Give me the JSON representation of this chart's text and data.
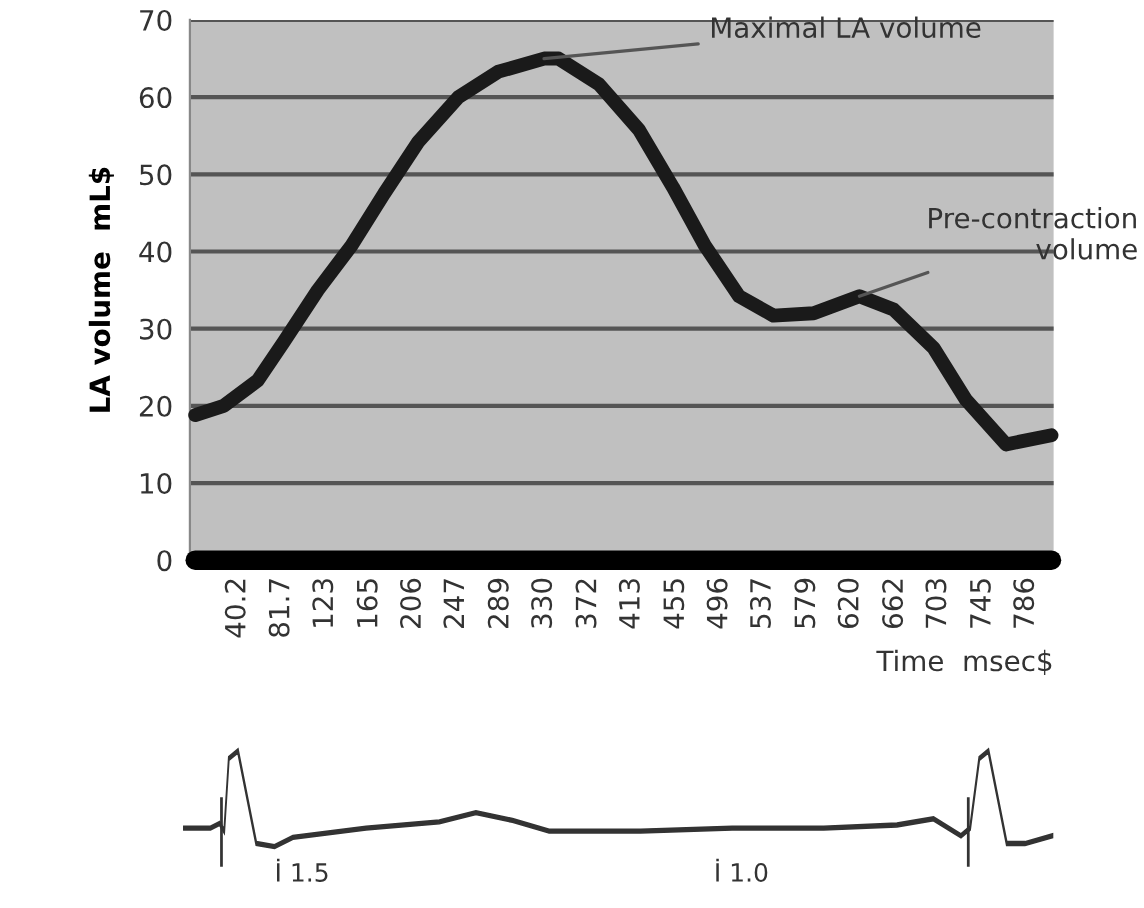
{
  "chart_data": {
    "type": "line",
    "xlabel": "Time  msec$",
    "ylabel": "LA volume  mL$",
    "x": [
      0,
      26.9,
      59.2,
      83.8,
      116,
      148,
      178.7,
      211,
      249,
      286.8,
      330,
      343.7,
      381.7,
      419.6,
      452,
      482,
      514.5,
      547,
      585,
      628.3,
      660.6,
      698.5,
      729,
      767,
      810
    ],
    "series": [
      {
        "color": "#1a1a1a",
        "values": [
          18.8,
          20,
          23.3,
          28.3,
          35,
          40.8,
          47.5,
          54.2,
          60,
          63.3,
          65,
          65,
          61.7,
          55.8,
          48.3,
          40.8,
          34.2,
          31.7,
          32,
          34.2,
          32.5,
          27.5,
          20.8,
          15,
          16.2
        ]
      },
      {
        "color": "#000000",
        "values": [
          0,
          0,
          0,
          0,
          0,
          0,
          0,
          0,
          0,
          0,
          0,
          0,
          0,
          0,
          0,
          0,
          0,
          0,
          0,
          0,
          0,
          0,
          0,
          0,
          0
        ]
      }
    ],
    "xlim": [
      -5,
      812
    ],
    "xticks": [
      40.2,
      81.7,
      123,
      165,
      206,
      247,
      289,
      330,
      372,
      413,
      455,
      496,
      537,
      579,
      620,
      662,
      703,
      745,
      786
    ],
    "ylim": [
      0,
      70
    ],
    "yticks": [
      0,
      10,
      20,
      30,
      40,
      50,
      60,
      70
    ],
    "grid": "y",
    "legend": false,
    "line_style": "solid",
    "marker": "none",
    "annotations": [
      {
        "text": "Maximal LA volume",
        "x": 330,
        "y": 65
      },
      {
        "text": "Pre-contraction\nvolume",
        "x": 628.3,
        "y": 34.2
      },
      "İ 1.5",
      "İ 1.0"
    ]
  }
}
